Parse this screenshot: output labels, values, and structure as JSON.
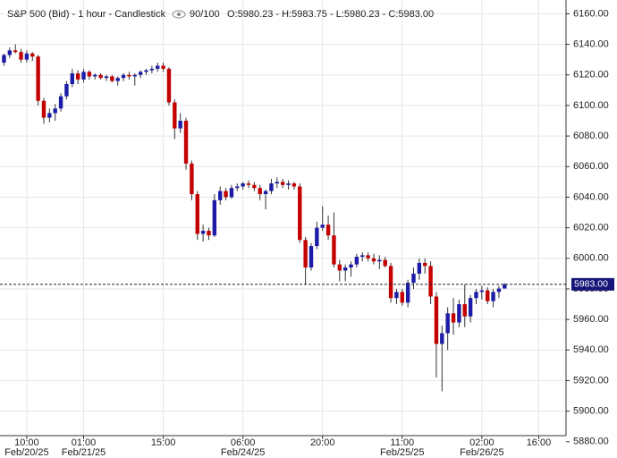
{
  "chart_data": {
    "type": "candlestick",
    "title": "S&P 500 (Bid) - 1 hour - Candlestick",
    "subtitle": "90/100",
    "ohlc_text": "O:5980.23 - H:5983.75 - L:5980.23 - C:5983.00",
    "up_color": "#1c1ca8",
    "down_color": "#c40000",
    "grid": true,
    "xlim": [
      -0.7,
      98.8
    ],
    "ylim": [
      5884,
      6169
    ],
    "yticks": [
      {
        "value": 5880,
        "label": "5880.00"
      },
      {
        "value": 5900,
        "label": "5900.00"
      },
      {
        "value": 5920,
        "label": "5920.00"
      },
      {
        "value": 5940,
        "label": "5940.00"
      },
      {
        "value": 5960,
        "label": "5960.00"
      },
      {
        "value": 5980,
        "label": "5980.00"
      },
      {
        "value": 6000,
        "label": "6000.00"
      },
      {
        "value": 6020,
        "label": "6020.00"
      },
      {
        "value": 6040,
        "label": "6040.00"
      },
      {
        "value": 6060,
        "label": "6060.00"
      },
      {
        "value": 6080,
        "label": "6080.00"
      },
      {
        "value": 6100,
        "label": "6100.00"
      },
      {
        "value": 6120,
        "label": "6120.00"
      },
      {
        "value": 6140,
        "label": "6140.00"
      },
      {
        "value": 6160,
        "label": "6160.00"
      }
    ],
    "xticks": [
      {
        "value": 4,
        "label": "10:00"
      },
      {
        "value": 14,
        "label": "01:00"
      },
      {
        "value": 28,
        "label": "15:00"
      },
      {
        "value": 42,
        "label": "06:00"
      },
      {
        "value": 56,
        "label": "20:00"
      },
      {
        "value": 70,
        "label": "11:00"
      },
      {
        "value": 84,
        "label": "02:00"
      },
      {
        "value": 94,
        "label": "16:00"
      }
    ],
    "xdates": [
      {
        "value": 4,
        "label": "Feb/20/25"
      },
      {
        "value": 14,
        "label": "Feb/21/25"
      },
      {
        "value": 42,
        "label": "Feb/24/25"
      },
      {
        "value": 70,
        "label": "Feb/25/25"
      },
      {
        "value": 84,
        "label": "Feb/26/25"
      }
    ],
    "last_price": 5983,
    "last_price_label": "5983.00",
    "open": [
      6128,
      6133,
      6136,
      6135,
      6130,
      6134,
      6132,
      6103,
      6092,
      6095,
      6098,
      6106,
      6114,
      6121,
      6117,
      6122,
      6119,
      6120,
      6118,
      6119,
      6116,
      6118,
      6120,
      6119,
      6120,
      6122,
      6123,
      6124,
      6126,
      6124,
      6102,
      6085,
      6090,
      6062,
      6042,
      6016,
      6018,
      6015,
      6038,
      6044,
      6040,
      6046,
      6047,
      6049,
      6048,
      6046,
      6042,
      6044,
      6049,
      6050,
      6048,
      6049,
      6047,
      6012,
      5994,
      6008,
      6020,
      6022,
      6015,
      5996,
      5992,
      5994,
      5996,
      6001,
      6002,
      6000,
      5998,
      5999,
      5995,
      5974,
      5978,
      5971,
      5984,
      5990,
      5997,
      5995,
      5975,
      5944,
      5951,
      5964,
      5958,
      5970,
      5962,
      5974,
      5978,
      5979,
      5972,
      5978,
      5980.23
    ],
    "high": [
      6134,
      6138,
      6140,
      6137,
      6136,
      6135,
      6133,
      6105,
      6098,
      6101,
      6108,
      6116,
      6124,
      6123,
      6124,
      6123,
      6121,
      6121,
      6120,
      6120,
      6119,
      6121,
      6122,
      6121,
      6123,
      6124,
      6126,
      6128,
      6128,
      6125,
      6104,
      6095,
      6092,
      6064,
      6044,
      6022,
      6020,
      6042,
      6047,
      6046,
      6048,
      6049,
      6050,
      6051,
      6050,
      6048,
      6045,
      6052,
      6053,
      6052,
      6051,
      6050,
      6049,
      6014,
      6010,
      6024,
      6034,
      6028,
      6030,
      5999,
      5996,
      5998,
      6003,
      6004,
      6004,
      6003,
      6002,
      6001,
      5997,
      5980,
      5980,
      5986,
      5994,
      6000,
      6000,
      5998,
      5978,
      5956,
      5968,
      5974,
      5973,
      5983,
      5976,
      5980,
      5982,
      5981,
      5980,
      5982,
      5983.75
    ],
    "low": [
      6126,
      6131,
      6134,
      6128,
      6128,
      6129,
      6100,
      6088,
      6089,
      6090,
      6096,
      6104,
      6112,
      6114,
      6115,
      6117,
      6117,
      6117,
      6116,
      6115,
      6113,
      6116,
      6117,
      6113,
      6118,
      6120,
      6121,
      6122,
      6122,
      6100,
      6078,
      6082,
      6058,
      6038,
      6012,
      6011,
      6012,
      6014,
      6035,
      6038,
      6039,
      6044,
      6045,
      6046,
      6044,
      6038,
      6032,
      6042,
      6046,
      6046,
      6045,
      6045,
      6010,
      5983,
      5992,
      6006,
      6018,
      6012,
      5994,
      5985,
      5985,
      5988,
      5994,
      5998,
      5998,
      5996,
      5993,
      5994,
      5971,
      5970,
      5969,
      5968,
      5980,
      5986,
      5990,
      5970,
      5922,
      5913,
      5940,
      5950,
      5955,
      5955,
      5958,
      5970,
      5973,
      5970,
      5968,
      5974,
      5980.23
    ],
    "close": [
      6133,
      6136,
      6135,
      6130,
      6134,
      6132,
      6103,
      6092,
      6095,
      6098,
      6106,
      6114,
      6121,
      6117,
      6122,
      6119,
      6120,
      6118,
      6119,
      6116,
      6118,
      6120,
      6119,
      6120,
      6122,
      6123,
      6124,
      6126,
      6124,
      6102,
      6085,
      6090,
      6062,
      6042,
      6016,
      6018,
      6015,
      6038,
      6044,
      6040,
      6046,
      6047,
      6049,
      6048,
      6046,
      6042,
      6044,
      6049,
      6050,
      6048,
      6049,
      6047,
      6012,
      5994,
      6008,
      6020,
      6022,
      6015,
      5996,
      5992,
      5994,
      5996,
      6001,
      6002,
      6000,
      5998,
      5999,
      5995,
      5974,
      5978,
      5971,
      5984,
      5990,
      5997,
      5995,
      5975,
      5944,
      5951,
      5964,
      5958,
      5970,
      5962,
      5974,
      5978,
      5979,
      5972,
      5978,
      5980.23,
      5983.0
    ]
  }
}
